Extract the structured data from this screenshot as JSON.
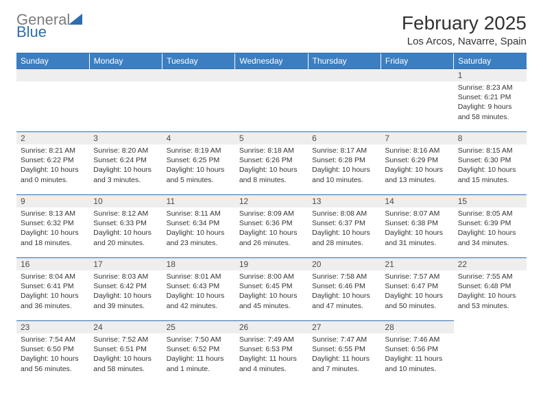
{
  "logo": {
    "word1": "General",
    "word2": "Blue"
  },
  "title": "February 2025",
  "location": "Los Arcos, Navarre, Spain",
  "colors": {
    "header_bg": "#3c7ebf",
    "header_text": "#ffffff",
    "rule": "#2d6db0",
    "daynum_bg": "#eeeeee",
    "body_text": "#333333",
    "logo_gray": "#7c7c7c",
    "logo_blue": "#2d6db0",
    "page_bg": "#ffffff"
  },
  "day_headers": [
    "Sunday",
    "Monday",
    "Tuesday",
    "Wednesday",
    "Thursday",
    "Friday",
    "Saturday"
  ],
  "weeks": [
    [
      {
        "n": "",
        "sunrise": "",
        "sunset": "",
        "daylight": ""
      },
      {
        "n": "",
        "sunrise": "",
        "sunset": "",
        "daylight": ""
      },
      {
        "n": "",
        "sunrise": "",
        "sunset": "",
        "daylight": ""
      },
      {
        "n": "",
        "sunrise": "",
        "sunset": "",
        "daylight": ""
      },
      {
        "n": "",
        "sunrise": "",
        "sunset": "",
        "daylight": ""
      },
      {
        "n": "",
        "sunrise": "",
        "sunset": "",
        "daylight": ""
      },
      {
        "n": "1",
        "sunrise": "Sunrise: 8:23 AM",
        "sunset": "Sunset: 6:21 PM",
        "daylight": "Daylight: 9 hours and 58 minutes."
      }
    ],
    [
      {
        "n": "2",
        "sunrise": "Sunrise: 8:21 AM",
        "sunset": "Sunset: 6:22 PM",
        "daylight": "Daylight: 10 hours and 0 minutes."
      },
      {
        "n": "3",
        "sunrise": "Sunrise: 8:20 AM",
        "sunset": "Sunset: 6:24 PM",
        "daylight": "Daylight: 10 hours and 3 minutes."
      },
      {
        "n": "4",
        "sunrise": "Sunrise: 8:19 AM",
        "sunset": "Sunset: 6:25 PM",
        "daylight": "Daylight: 10 hours and 5 minutes."
      },
      {
        "n": "5",
        "sunrise": "Sunrise: 8:18 AM",
        "sunset": "Sunset: 6:26 PM",
        "daylight": "Daylight: 10 hours and 8 minutes."
      },
      {
        "n": "6",
        "sunrise": "Sunrise: 8:17 AM",
        "sunset": "Sunset: 6:28 PM",
        "daylight": "Daylight: 10 hours and 10 minutes."
      },
      {
        "n": "7",
        "sunrise": "Sunrise: 8:16 AM",
        "sunset": "Sunset: 6:29 PM",
        "daylight": "Daylight: 10 hours and 13 minutes."
      },
      {
        "n": "8",
        "sunrise": "Sunrise: 8:15 AM",
        "sunset": "Sunset: 6:30 PM",
        "daylight": "Daylight: 10 hours and 15 minutes."
      }
    ],
    [
      {
        "n": "9",
        "sunrise": "Sunrise: 8:13 AM",
        "sunset": "Sunset: 6:32 PM",
        "daylight": "Daylight: 10 hours and 18 minutes."
      },
      {
        "n": "10",
        "sunrise": "Sunrise: 8:12 AM",
        "sunset": "Sunset: 6:33 PM",
        "daylight": "Daylight: 10 hours and 20 minutes."
      },
      {
        "n": "11",
        "sunrise": "Sunrise: 8:11 AM",
        "sunset": "Sunset: 6:34 PM",
        "daylight": "Daylight: 10 hours and 23 minutes."
      },
      {
        "n": "12",
        "sunrise": "Sunrise: 8:09 AM",
        "sunset": "Sunset: 6:36 PM",
        "daylight": "Daylight: 10 hours and 26 minutes."
      },
      {
        "n": "13",
        "sunrise": "Sunrise: 8:08 AM",
        "sunset": "Sunset: 6:37 PM",
        "daylight": "Daylight: 10 hours and 28 minutes."
      },
      {
        "n": "14",
        "sunrise": "Sunrise: 8:07 AM",
        "sunset": "Sunset: 6:38 PM",
        "daylight": "Daylight: 10 hours and 31 minutes."
      },
      {
        "n": "15",
        "sunrise": "Sunrise: 8:05 AM",
        "sunset": "Sunset: 6:39 PM",
        "daylight": "Daylight: 10 hours and 34 minutes."
      }
    ],
    [
      {
        "n": "16",
        "sunrise": "Sunrise: 8:04 AM",
        "sunset": "Sunset: 6:41 PM",
        "daylight": "Daylight: 10 hours and 36 minutes."
      },
      {
        "n": "17",
        "sunrise": "Sunrise: 8:03 AM",
        "sunset": "Sunset: 6:42 PM",
        "daylight": "Daylight: 10 hours and 39 minutes."
      },
      {
        "n": "18",
        "sunrise": "Sunrise: 8:01 AM",
        "sunset": "Sunset: 6:43 PM",
        "daylight": "Daylight: 10 hours and 42 minutes."
      },
      {
        "n": "19",
        "sunrise": "Sunrise: 8:00 AM",
        "sunset": "Sunset: 6:45 PM",
        "daylight": "Daylight: 10 hours and 45 minutes."
      },
      {
        "n": "20",
        "sunrise": "Sunrise: 7:58 AM",
        "sunset": "Sunset: 6:46 PM",
        "daylight": "Daylight: 10 hours and 47 minutes."
      },
      {
        "n": "21",
        "sunrise": "Sunrise: 7:57 AM",
        "sunset": "Sunset: 6:47 PM",
        "daylight": "Daylight: 10 hours and 50 minutes."
      },
      {
        "n": "22",
        "sunrise": "Sunrise: 7:55 AM",
        "sunset": "Sunset: 6:48 PM",
        "daylight": "Daylight: 10 hours and 53 minutes."
      }
    ],
    [
      {
        "n": "23",
        "sunrise": "Sunrise: 7:54 AM",
        "sunset": "Sunset: 6:50 PM",
        "daylight": "Daylight: 10 hours and 56 minutes."
      },
      {
        "n": "24",
        "sunrise": "Sunrise: 7:52 AM",
        "sunset": "Sunset: 6:51 PM",
        "daylight": "Daylight: 10 hours and 58 minutes."
      },
      {
        "n": "25",
        "sunrise": "Sunrise: 7:50 AM",
        "sunset": "Sunset: 6:52 PM",
        "daylight": "Daylight: 11 hours and 1 minute."
      },
      {
        "n": "26",
        "sunrise": "Sunrise: 7:49 AM",
        "sunset": "Sunset: 6:53 PM",
        "daylight": "Daylight: 11 hours and 4 minutes."
      },
      {
        "n": "27",
        "sunrise": "Sunrise: 7:47 AM",
        "sunset": "Sunset: 6:55 PM",
        "daylight": "Daylight: 11 hours and 7 minutes."
      },
      {
        "n": "28",
        "sunrise": "Sunrise: 7:46 AM",
        "sunset": "Sunset: 6:56 PM",
        "daylight": "Daylight: 11 hours and 10 minutes."
      },
      {
        "n": "",
        "sunrise": "",
        "sunset": "",
        "daylight": ""
      }
    ]
  ]
}
